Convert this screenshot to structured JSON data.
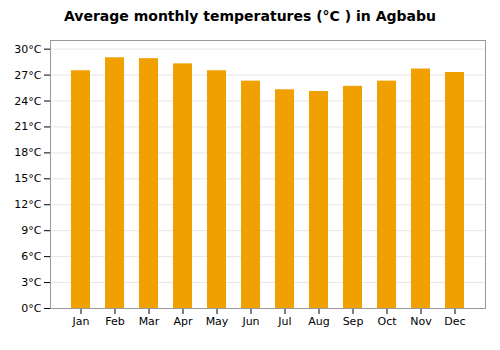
{
  "chart_data": {
    "type": "bar",
    "title": "Average monthly temperatures (°C ) in Agbabu",
    "categories": [
      "Jan",
      "Feb",
      "Mar",
      "Apr",
      "May",
      "Jun",
      "Jul",
      "Aug",
      "Sep",
      "Oct",
      "Nov",
      "Dec"
    ],
    "values": [
      27.5,
      29.0,
      28.9,
      28.3,
      27.5,
      26.3,
      25.3,
      25.1,
      25.7,
      26.3,
      27.7,
      27.3
    ],
    "color": "#F0A000",
    "ylim": [
      0,
      31
    ],
    "yticks": [
      {
        "value": 0,
        "label": "0°C"
      },
      {
        "value": 3,
        "label": "3°C"
      },
      {
        "value": 6,
        "label": "6°C"
      },
      {
        "value": 9,
        "label": "9°C"
      },
      {
        "value": 12,
        "label": "12°C"
      },
      {
        "value": 15,
        "label": "15°C"
      },
      {
        "value": 18,
        "label": "18°C"
      },
      {
        "value": 21,
        "label": "21°C"
      },
      {
        "value": 24,
        "label": "24°C"
      },
      {
        "value": 27,
        "label": "27°C"
      },
      {
        "value": 30,
        "label": "30°C"
      }
    ],
    "grid": true
  }
}
